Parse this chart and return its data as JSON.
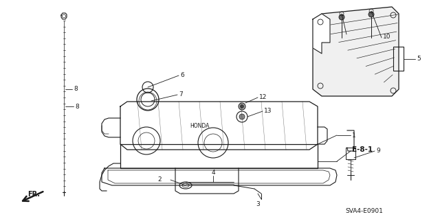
{
  "background_color": "#ffffff",
  "line_color": "#1a1a1a",
  "label_color": "#1a1a1a",
  "code": "SVA4-E0901",
  "figsize": [
    6.4,
    3.19
  ],
  "dpi": 100,
  "xlim": [
    0,
    640
  ],
  "ylim": [
    0,
    319
  ]
}
